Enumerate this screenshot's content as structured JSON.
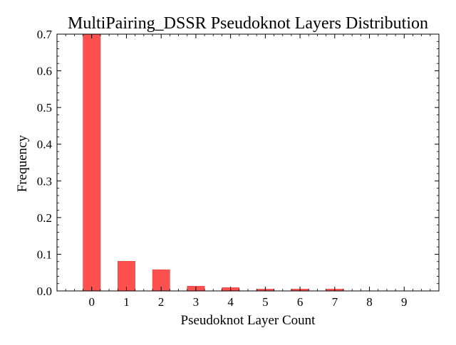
{
  "chart_data": {
    "type": "bar",
    "title": "MultiPairing_DSSR Pseudoknot Layers Distribution",
    "xlabel": "Pseudoknot Layer Count",
    "ylabel": "Frequency",
    "categories": [
      "0",
      "1",
      "2",
      "3",
      "4",
      "5",
      "6",
      "7",
      "8",
      "9"
    ],
    "values": [
      0.7,
      0.081,
      0.058,
      0.013,
      0.009,
      0.005,
      0.005,
      0.005,
      0.0,
      0.0
    ],
    "ylim": [
      0,
      0.7
    ],
    "xlim": [
      -1,
      10
    ],
    "yticks": [
      0.0,
      0.1,
      0.2,
      0.3,
      0.4,
      0.5,
      0.6,
      0.7
    ],
    "ytick_labels": [
      "0.0",
      "0.1",
      "0.2",
      "0.3",
      "0.4",
      "0.5",
      "0.6",
      "0.7"
    ],
    "grid": false,
    "legend": "none",
    "bar_color": "#ff5050",
    "bar_edge_color": "#d93a3a"
  }
}
